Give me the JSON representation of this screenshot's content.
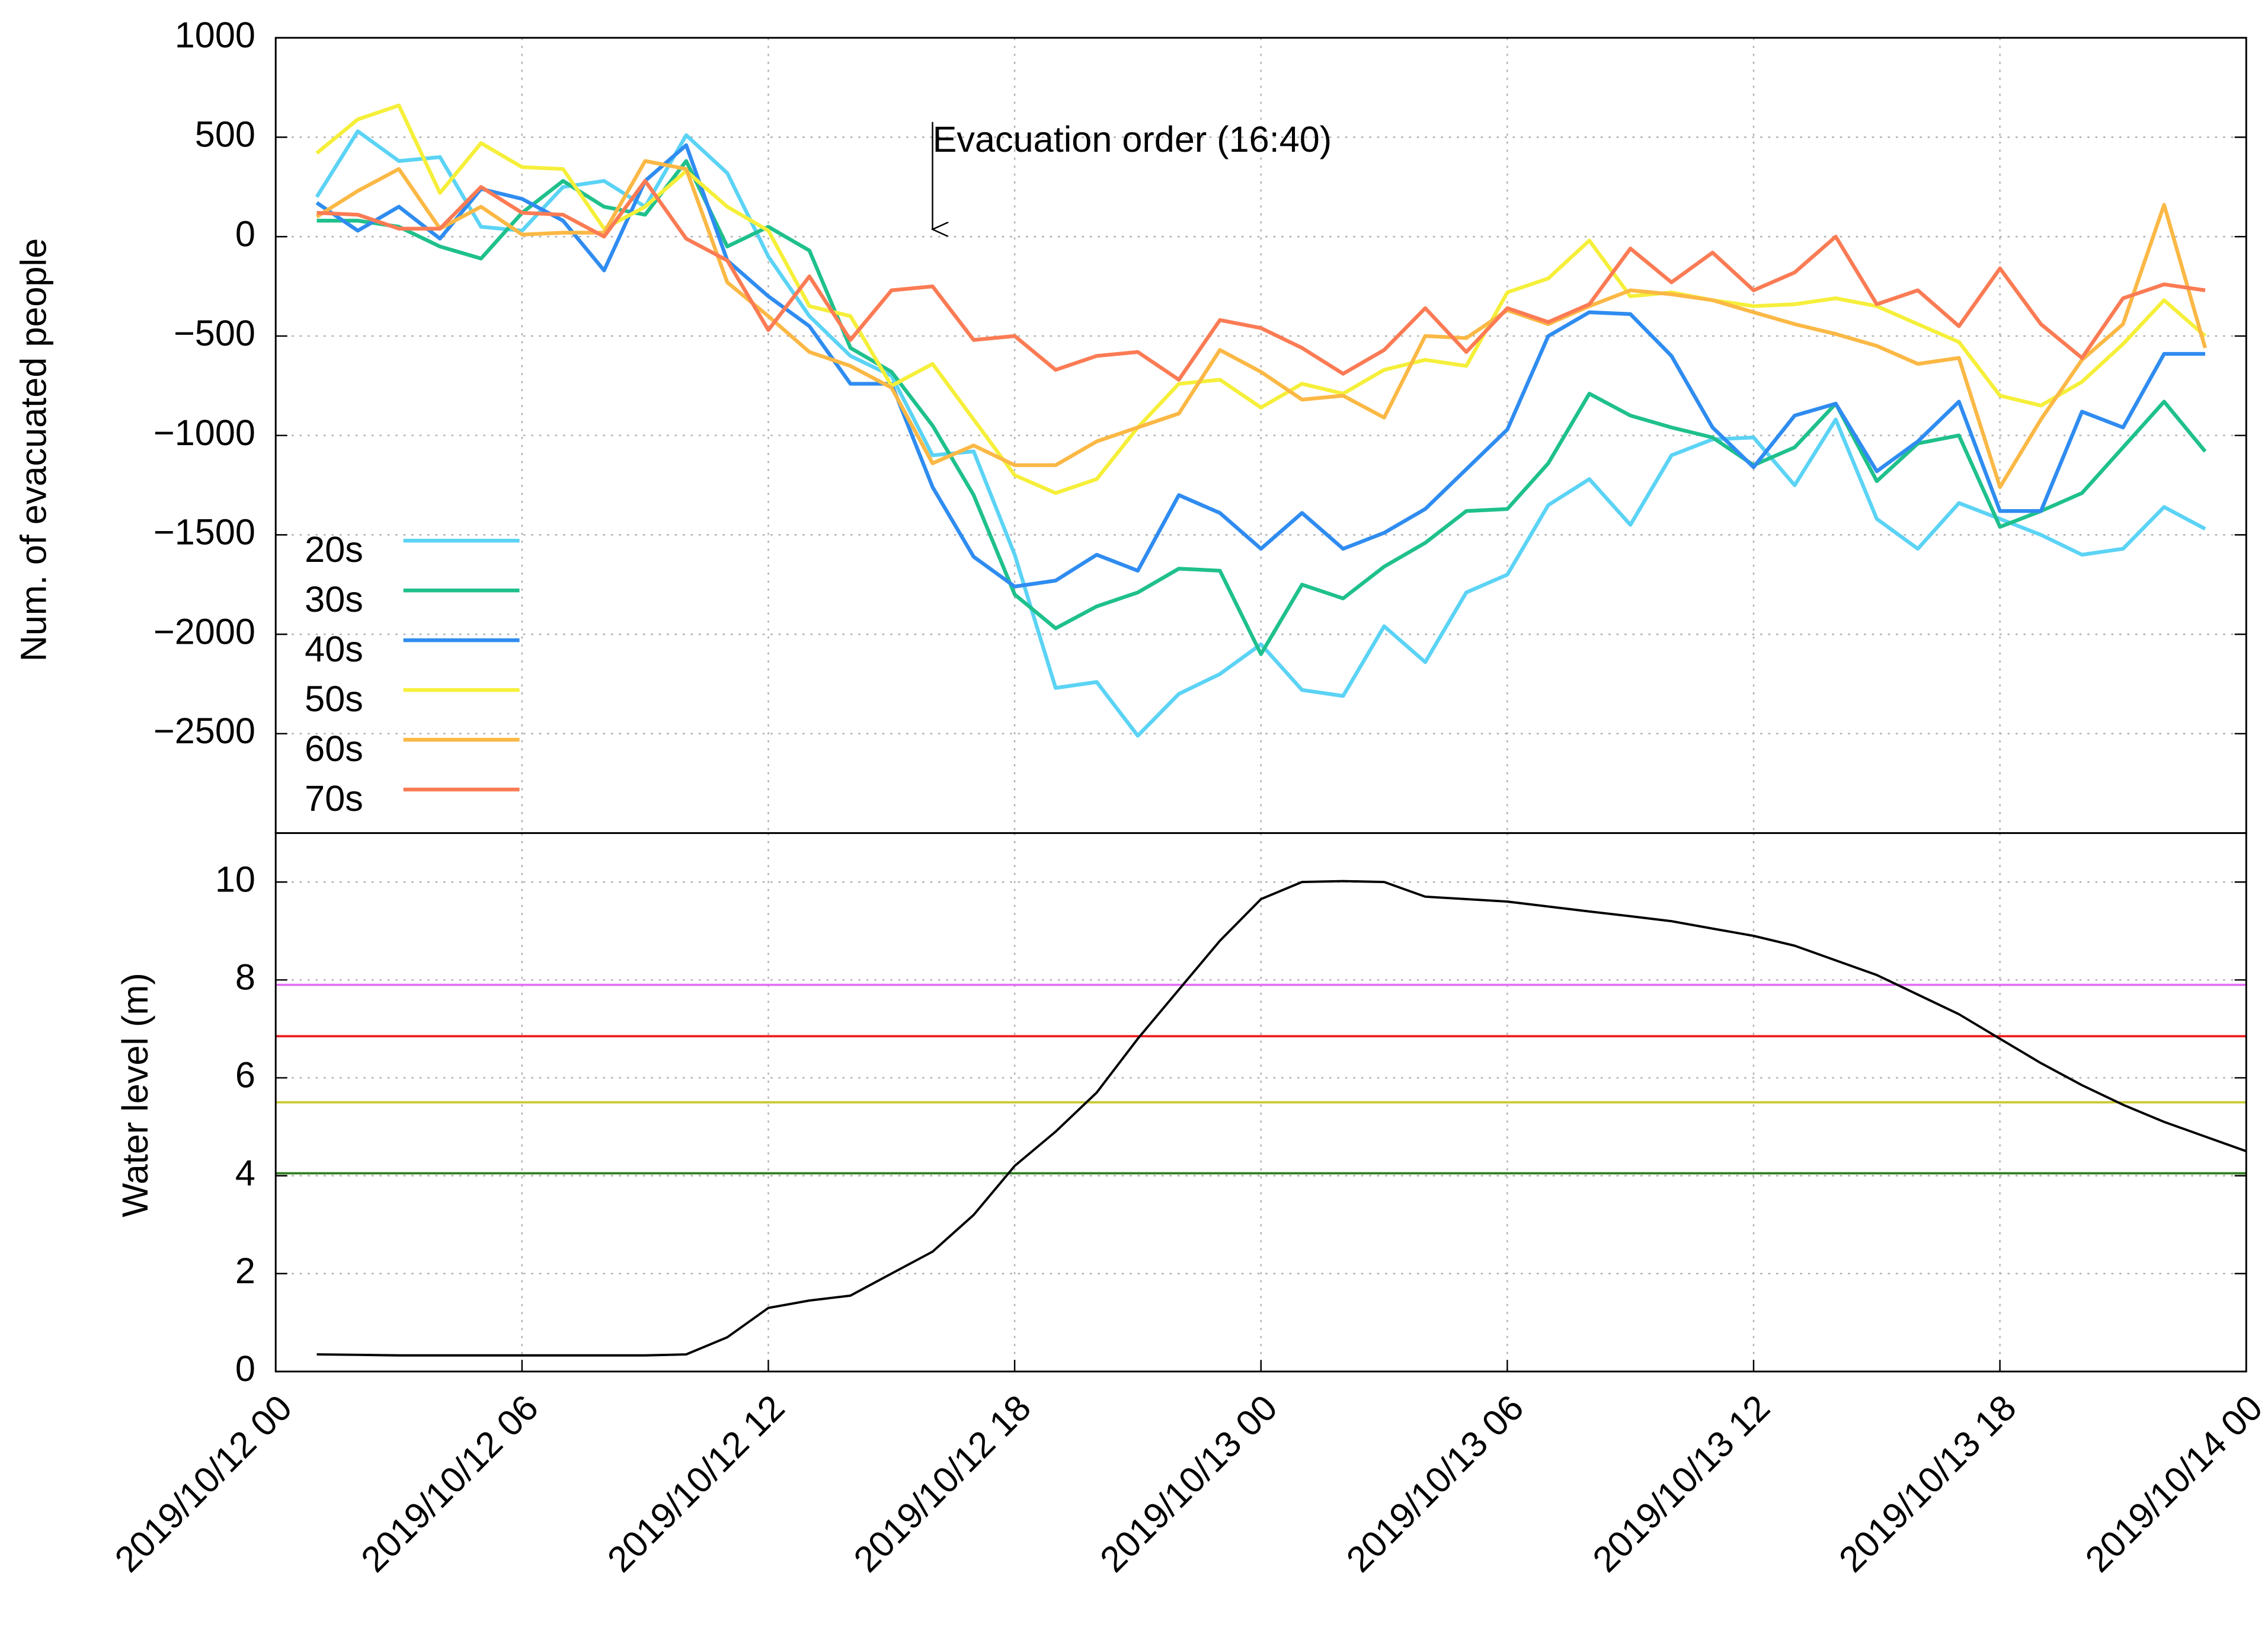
{
  "chart_data": [
    {
      "type": "line",
      "ylabel": "Num. of evacuated people",
      "x": [
        "2019/10/12 01",
        "2019/10/12 02",
        "2019/10/12 03",
        "2019/10/12 04",
        "2019/10/12 05",
        "2019/10/12 06",
        "2019/10/12 07",
        "2019/10/12 08",
        "2019/10/12 09",
        "2019/10/12 10",
        "2019/10/12 11",
        "2019/10/12 12",
        "2019/10/12 13",
        "2019/10/12 14",
        "2019/10/12 15",
        "2019/10/12 16",
        "2019/10/12 17",
        "2019/10/12 18",
        "2019/10/12 19",
        "2019/10/12 20",
        "2019/10/12 21",
        "2019/10/12 22",
        "2019/10/12 23",
        "2019/10/13 00",
        "2019/10/13 01",
        "2019/10/13 02",
        "2019/10/13 03",
        "2019/10/13 04",
        "2019/10/13 05",
        "2019/10/13 06",
        "2019/10/13 07",
        "2019/10/13 08",
        "2019/10/13 09",
        "2019/10/13 10",
        "2019/10/13 11",
        "2019/10/13 12",
        "2019/10/13 13",
        "2019/10/13 14",
        "2019/10/13 15",
        "2019/10/13 16",
        "2019/10/13 17",
        "2019/10/13 18",
        "2019/10/13 19",
        "2019/10/13 20",
        "2019/10/13 21",
        "2019/10/13 22",
        "2019/10/13 23"
      ],
      "xlim": [
        "2019/10/12 00",
        "2019/10/14 00"
      ],
      "ylim": [
        -3000,
        1000
      ],
      "yticks": [
        {
          "value": -2500,
          "label": "−2500"
        },
        {
          "value": -2000,
          "label": "−2000"
        },
        {
          "value": -1500,
          "label": "−1500"
        },
        {
          "value": -1000,
          "label": "−1000"
        },
        {
          "value": -500,
          "label": "−500"
        },
        0,
        500,
        1000
      ],
      "grid": true,
      "legend": "lower left",
      "annotation": {
        "text": "Evacuation order (16:40)",
        "x": "2019/10/12 16"
      },
      "series": [
        {
          "name": "20s",
          "color": "#5bd3f5",
          "values": [
            200,
            530,
            380,
            400,
            50,
            30,
            250,
            280,
            150,
            510,
            320,
            -100,
            -400,
            -600,
            -700,
            -1100,
            -1080,
            -1600,
            -2270,
            -2240,
            -2510,
            -2300,
            -2200,
            -2050,
            -2280,
            -2310,
            -1960,
            -2140,
            -1790,
            -1700,
            -1350,
            -1220,
            -1450,
            -1100,
            -1020,
            -1010,
            -1250,
            -920,
            -1420,
            -1570,
            -1340,
            -1420,
            -1500,
            -1600,
            -1570,
            -1360,
            -1470
          ]
        },
        {
          "name": "30s",
          "color": "#1fc08c",
          "values": [
            80,
            80,
            50,
            -50,
            -110,
            120,
            280,
            150,
            110,
            380,
            -50,
            50,
            -70,
            -560,
            -680,
            -950,
            -1300,
            -1800,
            -1970,
            -1860,
            -1790,
            -1670,
            -1680,
            -2100,
            -1750,
            -1820,
            -1660,
            -1540,
            -1380,
            -1370,
            -1140,
            -790,
            -900,
            -960,
            -1010,
            -1150,
            -1060,
            -840,
            -1230,
            -1040,
            -1000,
            -1460,
            -1380,
            -1290,
            -1060,
            -830,
            -1080
          ]
        },
        {
          "name": "40s",
          "color": "#2f8cf0",
          "values": [
            170,
            30,
            150,
            -10,
            240,
            190,
            80,
            -170,
            280,
            460,
            -120,
            -300,
            -450,
            -740,
            -740,
            -1260,
            -1610,
            -1760,
            -1730,
            -1600,
            -1680,
            -1300,
            -1390,
            -1570,
            -1390,
            -1570,
            -1490,
            -1370,
            -1170,
            -970,
            -500,
            -380,
            -390,
            -600,
            -960,
            -1160,
            -900,
            -840,
            -1180,
            -1030,
            -830,
            -1380,
            -1380,
            -880,
            -960,
            -590,
            -590
          ]
        },
        {
          "name": "50s",
          "color": "#f5ef3a",
          "values": [
            420,
            590,
            660,
            220,
            470,
            350,
            340,
            40,
            150,
            330,
            150,
            30,
            -350,
            -400,
            -750,
            -640,
            -920,
            -1200,
            -1290,
            -1220,
            -960,
            -740,
            -720,
            -860,
            -740,
            -790,
            -670,
            -620,
            -650,
            -280,
            -210,
            -20,
            -300,
            -280,
            -320,
            -350,
            -340,
            -310,
            -350,
            -440,
            -530,
            -800,
            -850,
            -730,
            -540,
            -320,
            -500
          ]
        },
        {
          "name": "60s",
          "color": "#fbb845",
          "values": [
            100,
            230,
            340,
            40,
            150,
            10,
            20,
            20,
            380,
            340,
            -230,
            -400,
            -580,
            -650,
            -760,
            -1140,
            -1050,
            -1150,
            -1150,
            -1030,
            -960,
            -890,
            -570,
            -680,
            -820,
            -800,
            -910,
            -500,
            -510,
            -370,
            -440,
            -350,
            -270,
            -290,
            -320,
            -380,
            -440,
            -490,
            -550,
            -640,
            -610,
            -1260,
            -920,
            -620,
            -440,
            160,
            -560
          ]
        },
        {
          "name": "70s",
          "color": "#fb7b54",
          "values": [
            120,
            110,
            40,
            40,
            250,
            120,
            110,
            0,
            280,
            -10,
            -120,
            -470,
            -200,
            -520,
            -270,
            -250,
            -520,
            -500,
            -670,
            -600,
            -580,
            -720,
            -420,
            -460,
            -560,
            -690,
            -570,
            -360,
            -580,
            -360,
            -430,
            -340,
            -60,
            -230,
            -80,
            -270,
            -180,
            0,
            -340,
            -270,
            -450,
            -160,
            -440,
            -610,
            -310,
            -240,
            -270
          ]
        }
      ]
    },
    {
      "type": "line",
      "ylabel": "Water level (m)",
      "x": [
        "2019/10/12 01",
        "2019/10/12 02",
        "2019/10/12 03",
        "2019/10/12 04",
        "2019/10/12 05",
        "2019/10/12 06",
        "2019/10/12 07",
        "2019/10/12 08",
        "2019/10/12 09",
        "2019/10/12 10",
        "2019/10/12 11",
        "2019/10/12 12",
        "2019/10/12 13",
        "2019/10/12 14",
        "2019/10/12 15",
        "2019/10/12 16",
        "2019/10/12 17",
        "2019/10/12 18",
        "2019/10/12 19",
        "2019/10/12 20",
        "2019/10/12 21",
        "2019/10/12 22",
        "2019/10/12 23",
        "2019/10/13 00",
        "2019/10/13 01",
        "2019/10/13 02",
        "2019/10/13 03",
        "2019/10/13 04",
        "2019/10/13 05",
        "2019/10/13 06",
        "2019/10/13 07",
        "2019/10/13 08",
        "2019/10/13 09",
        "2019/10/13 10",
        "2019/10/13 11",
        "2019/10/13 12",
        "2019/10/13 13",
        "2019/10/13 14",
        "2019/10/13 15",
        "2019/10/13 16",
        "2019/10/13 17",
        "2019/10/13 18",
        "2019/10/13 19",
        "2019/10/13 20",
        "2019/10/13 21",
        "2019/10/13 22",
        "2019/10/13 23",
        "2019/10/14 00"
      ],
      "xlim": [
        "2019/10/12 00",
        "2019/10/14 00"
      ],
      "xticks": [
        "2019/10/12 00",
        "2019/10/12 06",
        "2019/10/12 12",
        "2019/10/12 18",
        "2019/10/13 00",
        "2019/10/13 06",
        "2019/10/13 12",
        "2019/10/13 18",
        "2019/10/14 00"
      ],
      "ylim": [
        0,
        11
      ],
      "yticks": [
        0,
        2,
        4,
        6,
        8,
        10
      ],
      "grid": true,
      "hlines": [
        {
          "value": 7.9,
          "color": "#e36cf5"
        },
        {
          "value": 6.85,
          "color": "#ee1c1c"
        },
        {
          "value": 5.5,
          "color": "#c8c832"
        },
        {
          "value": 4.05,
          "color": "#2e7d1e"
        }
      ],
      "color": "#000000",
      "values": [
        0.35,
        0.34,
        0.33,
        0.33,
        0.33,
        0.33,
        0.33,
        0.33,
        0.33,
        0.35,
        0.7,
        1.3,
        1.45,
        1.55,
        2.0,
        2.45,
        3.2,
        4.2,
        4.9,
        5.7,
        6.8,
        7.8,
        8.8,
        9.65,
        10.0,
        10.02,
        10.0,
        9.7,
        9.65,
        9.6,
        9.5,
        9.4,
        9.3,
        9.2,
        9.05,
        8.9,
        8.7,
        8.4,
        8.1,
        7.7,
        7.3,
        6.8,
        6.3,
        5.85,
        5.45,
        5.1,
        4.8,
        4.5
      ]
    }
  ]
}
